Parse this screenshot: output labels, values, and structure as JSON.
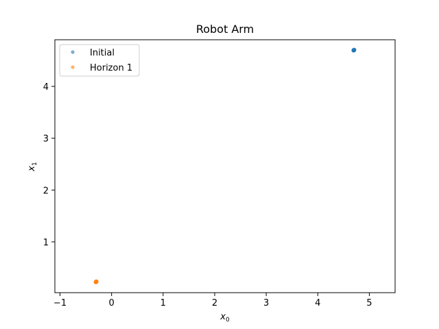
{
  "chart_data": {
    "type": "scatter",
    "title": "Robot Arm",
    "xlabel": "x",
    "xlabel_sub": "0",
    "ylabel": "x",
    "ylabel_sub": "1",
    "xlim": [
      -1.1,
      5.5
    ],
    "ylim": [
      0.02,
      4.9
    ],
    "xticks": [
      -1,
      0,
      1,
      2,
      3,
      4,
      5
    ],
    "yticks": [
      1,
      2,
      3,
      4
    ],
    "grid": false,
    "legend_position": "top-left",
    "series": [
      {
        "name": "Initial",
        "color": "#1f77b4",
        "points": [
          [
            4.69,
            4.7
          ],
          [
            4.7,
            4.71
          ],
          [
            4.71,
            4.7
          ],
          [
            4.7,
            4.69
          ],
          [
            4.69,
            4.69
          ],
          [
            4.71,
            4.71
          ],
          [
            4.7,
            4.7
          ],
          [
            4.705,
            4.695
          ]
        ]
      },
      {
        "name": "Horizon 1",
        "color": "#ff7f0e",
        "points": [
          [
            -0.31,
            0.23
          ],
          [
            -0.3,
            0.24
          ],
          [
            -0.29,
            0.23
          ],
          [
            -0.3,
            0.22
          ],
          [
            -0.31,
            0.22
          ],
          [
            -0.29,
            0.24
          ],
          [
            -0.3,
            0.23
          ],
          [
            -0.305,
            0.225
          ]
        ]
      }
    ]
  }
}
